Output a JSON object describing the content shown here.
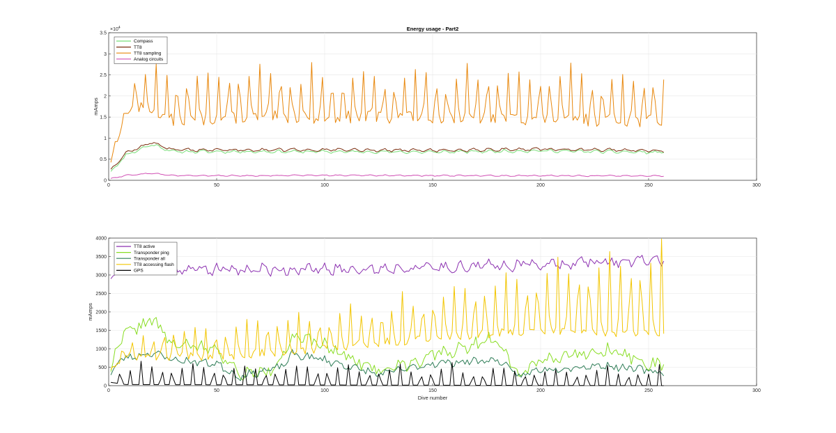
{
  "chart_data": [
    {
      "type": "line",
      "title": "Energy usage - Part2",
      "xlabel": "",
      "ylabel": "mAmps",
      "xlim": [
        0,
        300
      ],
      "ylim": [
        0,
        35000
      ],
      "xticks": [
        0,
        50,
        100,
        150,
        200,
        250,
        300
      ],
      "yticks": [
        0,
        5000,
        10000,
        15000,
        20000,
        25000,
        30000,
        35000
      ],
      "ytick_labels": [
        "0",
        "0.5",
        "1",
        "1.5",
        "2",
        "2.5",
        "3",
        "3.5"
      ],
      "y_exponent_label": "×10",
      "y_exponent": "4",
      "grid": true,
      "legend_position": "top-left",
      "series": [
        {
          "name": "Compass",
          "color": "#77dd77",
          "kind": "wavy",
          "base": [
            [
              1,
              2000
            ],
            [
              8,
              6000
            ],
            [
              20,
              8500
            ],
            [
              30,
              6800
            ],
            [
              60,
              6800
            ],
            [
              100,
              6800
            ],
            [
              150,
              6700
            ],
            [
              200,
              7000
            ],
            [
              257,
              6600
            ]
          ],
          "amp": 500,
          "jitter": 200,
          "seed": 11
        },
        {
          "name": "TT8",
          "color": "#7a2e0e",
          "kind": "wavy",
          "base": [
            [
              1,
              2500
            ],
            [
              8,
              6500
            ],
            [
              20,
              9000
            ],
            [
              30,
              7200
            ],
            [
              60,
              7200
            ],
            [
              100,
              7200
            ],
            [
              150,
              7100
            ],
            [
              200,
              7400
            ],
            [
              257,
              7000
            ]
          ],
          "amp": 550,
          "jitter": 200,
          "seed": 12
        },
        {
          "name": "TT8 sampling",
          "color": "#e8870c",
          "kind": "peaks",
          "base_pts": [
            [
              1,
              5000
            ],
            [
              5,
              12000
            ],
            [
              9,
              17000
            ],
            [
              20,
              17000
            ],
            [
              30,
              14000
            ],
            [
              60,
              15000
            ],
            [
              100,
              15000
            ],
            [
              150,
              15000
            ],
            [
              200,
              14500
            ],
            [
              257,
              14000
            ]
          ],
          "peak": 26500,
          "period": 4.8,
          "start": 10,
          "end": 257,
          "jitter": 1500,
          "seed": 13
        },
        {
          "name": "Analog circuits",
          "color": "#d04fb4",
          "kind": "wavy",
          "base": [
            [
              1,
              400
            ],
            [
              8,
              1200
            ],
            [
              20,
              1700
            ],
            [
              30,
              1100
            ],
            [
              60,
              1100
            ],
            [
              100,
              1200
            ],
            [
              150,
              1100
            ],
            [
              200,
              1100
            ],
            [
              257,
              1000
            ]
          ],
          "amp": 200,
          "jitter": 100,
          "seed": 14
        }
      ]
    },
    {
      "type": "line",
      "title": "",
      "xlabel": "Dive number",
      "ylabel": "mAmps",
      "xlim": [
        0,
        300
      ],
      "ylim": [
        0,
        4000
      ],
      "xticks": [
        0,
        50,
        100,
        150,
        200,
        250,
        300
      ],
      "yticks": [
        0,
        500,
        1000,
        1500,
        2000,
        2500,
        3000,
        3500,
        4000
      ],
      "ytick_labels": [
        "0",
        "500",
        "1000",
        "1500",
        "2000",
        "2500",
        "3000",
        "3500",
        "4000"
      ],
      "grid": true,
      "legend_position": "top-left",
      "series": [
        {
          "name": "TT8 active",
          "color": "#8b2fb0",
          "kind": "wavy",
          "base": [
            [
              1,
              2900
            ],
            [
              5,
              3200
            ],
            [
              50,
              3150
            ],
            [
              100,
              3150
            ],
            [
              150,
              3200
            ],
            [
              200,
              3300
            ],
            [
              257,
              3400
            ]
          ],
          "amp": 150,
          "jitter": 120,
          "seed": 21
        },
        {
          "name": "Transponder ping",
          "color": "#88dd22",
          "kind": "wavy",
          "base": [
            [
              1,
              400
            ],
            [
              5,
              1300
            ],
            [
              20,
              1800
            ],
            [
              30,
              1100
            ],
            [
              50,
              1000
            ],
            [
              60,
              300
            ],
            [
              75,
              400
            ],
            [
              85,
              1300
            ],
            [
              100,
              1100
            ],
            [
              125,
              400
            ],
            [
              150,
              800
            ],
            [
              180,
              1300
            ],
            [
              190,
              300
            ],
            [
              200,
              700
            ],
            [
              230,
              1000
            ],
            [
              257,
              500
            ]
          ],
          "amp": 150,
          "jitter": 150,
          "seed": 22
        },
        {
          "name": "Transponder all",
          "color": "#2e7d57",
          "kind": "wavy",
          "base": [
            [
              1,
              300
            ],
            [
              5,
              700
            ],
            [
              20,
              900
            ],
            [
              30,
              700
            ],
            [
              50,
              600
            ],
            [
              60,
              250
            ],
            [
              80,
              500
            ],
            [
              85,
              850
            ],
            [
              100,
              700
            ],
            [
              125,
              300
            ],
            [
              150,
              600
            ],
            [
              180,
              700
            ],
            [
              190,
              250
            ],
            [
              200,
              450
            ],
            [
              230,
              550
            ],
            [
              257,
              350
            ]
          ],
          "amp": 90,
          "jitter": 90,
          "seed": 23
        },
        {
          "name": "TT8 accessing flash",
          "color": "#f2c500",
          "kind": "peaks",
          "base_pts": [
            [
              1,
              500
            ],
            [
              10,
              800
            ],
            [
              50,
              800
            ],
            [
              80,
              900
            ],
            [
              100,
              1000
            ],
            [
              150,
              1300
            ],
            [
              200,
              1500
            ],
            [
              257,
              1400
            ]
          ],
          "peak_pts": [
            [
              1,
              1000
            ],
            [
              30,
              1600
            ],
            [
              80,
              2000
            ],
            [
              120,
              2200
            ],
            [
              160,
              2800
            ],
            [
              200,
              3300
            ],
            [
              230,
              3700
            ],
            [
              257,
              3900
            ]
          ],
          "period": 4.8,
          "start": 4,
          "end": 257,
          "jitter": 120,
          "seed": 24
        },
        {
          "name": "GPS",
          "color": "#000000",
          "kind": "spikes",
          "base_pts": [
            [
              1,
              300
            ],
            [
              8,
              100
            ],
            [
              257,
              0
            ]
          ],
          "peak_pts": [
            [
              1,
              600
            ],
            [
              257,
              500
            ]
          ],
          "period": 4.8,
          "start": 3,
          "end": 257,
          "jitter": 180,
          "seed": 25
        }
      ]
    }
  ]
}
